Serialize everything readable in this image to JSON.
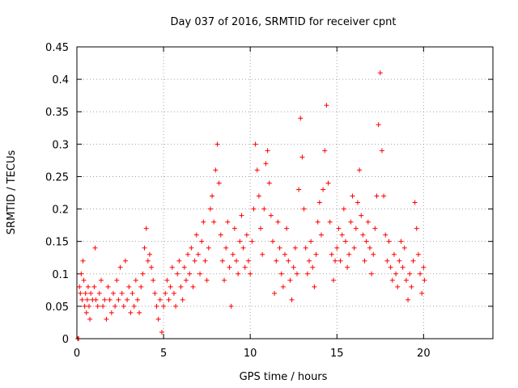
{
  "chart_data": {
    "type": "scatter",
    "title": "Day 037 of 2016, SRMTID for receiver cpnt",
    "xlabel": "GPS time / hours",
    "ylabel": "SRMTID / TECUs",
    "xlim": [
      0,
      24
    ],
    "ylim": [
      0,
      0.45
    ],
    "x_ticks": [
      0,
      5,
      10,
      15,
      20
    ],
    "x_tick_labels": [
      "0",
      "5",
      "10",
      "15",
      "20"
    ],
    "y_ticks": [
      0,
      0.05,
      0.1,
      0.15,
      0.2,
      0.25,
      0.3,
      0.35,
      0.4,
      0.45
    ],
    "y_tick_labels": [
      "0",
      "0.05",
      "0.1",
      "0.15",
      "0.2",
      "0.25",
      "0.3",
      "0.35",
      "0.4",
      "0.45"
    ],
    "grid": true,
    "marker": "plus",
    "color": "#ff0000",
    "series": [
      {
        "points": [
          [
            0.05,
            0.0
          ],
          [
            0.1,
            0.0
          ],
          [
            0.15,
            0.08
          ],
          [
            0.2,
            0.07
          ],
          [
            0.25,
            0.1
          ],
          [
            0.3,
            0.06
          ],
          [
            0.35,
            0.12
          ],
          [
            0.4,
            0.09
          ],
          [
            0.45,
            0.05
          ],
          [
            0.5,
            0.07
          ],
          [
            0.55,
            0.04
          ],
          [
            0.6,
            0.06
          ],
          [
            0.65,
            0.08
          ],
          [
            0.7,
            0.05
          ],
          [
            0.75,
            0.03
          ],
          [
            0.8,
            0.07
          ],
          [
            0.9,
            0.06
          ],
          [
            1.0,
            0.08
          ],
          [
            1.05,
            0.14
          ],
          [
            1.1,
            0.06
          ],
          [
            1.2,
            0.05
          ],
          [
            1.3,
            0.07
          ],
          [
            1.4,
            0.09
          ],
          [
            1.5,
            0.05
          ],
          [
            1.6,
            0.06
          ],
          [
            1.7,
            0.03
          ],
          [
            1.8,
            0.08
          ],
          [
            1.9,
            0.06
          ],
          [
            2.0,
            0.04
          ],
          [
            2.1,
            0.07
          ],
          [
            2.2,
            0.05
          ],
          [
            2.3,
            0.09
          ],
          [
            2.4,
            0.06
          ],
          [
            2.5,
            0.11
          ],
          [
            2.6,
            0.07
          ],
          [
            2.7,
            0.05
          ],
          [
            2.8,
            0.12
          ],
          [
            2.9,
            0.06
          ],
          [
            3.0,
            0.08
          ],
          [
            3.1,
            0.04
          ],
          [
            3.2,
            0.07
          ],
          [
            3.3,
            0.05
          ],
          [
            3.4,
            0.09
          ],
          [
            3.5,
            0.06
          ],
          [
            3.6,
            0.04
          ],
          [
            3.7,
            0.08
          ],
          [
            3.8,
            0.1
          ],
          [
            3.9,
            0.14
          ],
          [
            4.0,
            0.17
          ],
          [
            4.1,
            0.12
          ],
          [
            4.2,
            0.13
          ],
          [
            4.3,
            0.11
          ],
          [
            4.4,
            0.09
          ],
          [
            4.5,
            0.07
          ],
          [
            4.6,
            0.05
          ],
          [
            4.7,
            0.03
          ],
          [
            4.8,
            0.06
          ],
          [
            4.9,
            0.01
          ],
          [
            5.0,
            0.05
          ],
          [
            5.1,
            0.07
          ],
          [
            5.2,
            0.09
          ],
          [
            5.3,
            0.06
          ],
          [
            5.4,
            0.08
          ],
          [
            5.5,
            0.11
          ],
          [
            5.6,
            0.07
          ],
          [
            5.7,
            0.05
          ],
          [
            5.8,
            0.1
          ],
          [
            5.9,
            0.12
          ],
          [
            6.0,
            0.08
          ],
          [
            6.1,
            0.06
          ],
          [
            6.2,
            0.11
          ],
          [
            6.3,
            0.09
          ],
          [
            6.4,
            0.13
          ],
          [
            6.5,
            0.1
          ],
          [
            6.6,
            0.14
          ],
          [
            6.7,
            0.08
          ],
          [
            6.8,
            0.12
          ],
          [
            6.9,
            0.16
          ],
          [
            7.0,
            0.13
          ],
          [
            7.1,
            0.1
          ],
          [
            7.2,
            0.15
          ],
          [
            7.3,
            0.18
          ],
          [
            7.4,
            0.12
          ],
          [
            7.5,
            0.09
          ],
          [
            7.6,
            0.14
          ],
          [
            7.7,
            0.2
          ],
          [
            7.8,
            0.22
          ],
          [
            7.9,
            0.18
          ],
          [
            8.0,
            0.26
          ],
          [
            8.1,
            0.3
          ],
          [
            8.2,
            0.24
          ],
          [
            8.3,
            0.16
          ],
          [
            8.4,
            0.12
          ],
          [
            8.5,
            0.09
          ],
          [
            8.6,
            0.14
          ],
          [
            8.7,
            0.18
          ],
          [
            8.8,
            0.11
          ],
          [
            8.9,
            0.05
          ],
          [
            9.0,
            0.13
          ],
          [
            9.1,
            0.17
          ],
          [
            9.2,
            0.12
          ],
          [
            9.3,
            0.1
          ],
          [
            9.4,
            0.15
          ],
          [
            9.5,
            0.19
          ],
          [
            9.6,
            0.14
          ],
          [
            9.7,
            0.11
          ],
          [
            9.8,
            0.16
          ],
          [
            9.9,
            0.12
          ],
          [
            10.0,
            0.1
          ],
          [
            10.1,
            0.15
          ],
          [
            10.2,
            0.2
          ],
          [
            10.3,
            0.3
          ],
          [
            10.4,
            0.26
          ],
          [
            10.5,
            0.22
          ],
          [
            10.6,
            0.17
          ],
          [
            10.7,
            0.13
          ],
          [
            10.8,
            0.2
          ],
          [
            10.9,
            0.27
          ],
          [
            11.0,
            0.29
          ],
          [
            11.1,
            0.24
          ],
          [
            11.2,
            0.19
          ],
          [
            11.3,
            0.15
          ],
          [
            11.4,
            0.07
          ],
          [
            11.5,
            0.12
          ],
          [
            11.6,
            0.18
          ],
          [
            11.7,
            0.14
          ],
          [
            11.8,
            0.1
          ],
          [
            11.9,
            0.08
          ],
          [
            12.0,
            0.13
          ],
          [
            12.1,
            0.17
          ],
          [
            12.2,
            0.12
          ],
          [
            12.3,
            0.09
          ],
          [
            12.4,
            0.06
          ],
          [
            12.5,
            0.11
          ],
          [
            12.6,
            0.14
          ],
          [
            12.7,
            0.1
          ],
          [
            12.8,
            0.23
          ],
          [
            12.9,
            0.34
          ],
          [
            13.0,
            0.28
          ],
          [
            13.1,
            0.2
          ],
          [
            13.2,
            0.14
          ],
          [
            13.3,
            0.1
          ],
          [
            13.4,
            0.12
          ],
          [
            13.5,
            0.15
          ],
          [
            13.6,
            0.11
          ],
          [
            13.7,
            0.08
          ],
          [
            13.8,
            0.13
          ],
          [
            13.9,
            0.18
          ],
          [
            14.0,
            0.21
          ],
          [
            14.1,
            0.16
          ],
          [
            14.2,
            0.23
          ],
          [
            14.3,
            0.29
          ],
          [
            14.4,
            0.36
          ],
          [
            14.5,
            0.24
          ],
          [
            14.6,
            0.18
          ],
          [
            14.7,
            0.13
          ],
          [
            14.8,
            0.09
          ],
          [
            14.9,
            0.12
          ],
          [
            15.0,
            0.14
          ],
          [
            15.1,
            0.17
          ],
          [
            15.2,
            0.12
          ],
          [
            15.3,
            0.16
          ],
          [
            15.4,
            0.2
          ],
          [
            15.5,
            0.15
          ],
          [
            15.6,
            0.11
          ],
          [
            15.7,
            0.13
          ],
          [
            15.8,
            0.18
          ],
          [
            15.9,
            0.22
          ],
          [
            16.0,
            0.14
          ],
          [
            16.1,
            0.17
          ],
          [
            16.2,
            0.21
          ],
          [
            16.3,
            0.26
          ],
          [
            16.4,
            0.19
          ],
          [
            16.5,
            0.16
          ],
          [
            16.6,
            0.12
          ],
          [
            16.7,
            0.15
          ],
          [
            16.8,
            0.18
          ],
          [
            16.9,
            0.14
          ],
          [
            17.0,
            0.1
          ],
          [
            17.1,
            0.13
          ],
          [
            17.2,
            0.17
          ],
          [
            17.3,
            0.22
          ],
          [
            17.4,
            0.33
          ],
          [
            17.5,
            0.41
          ],
          [
            17.6,
            0.29
          ],
          [
            17.7,
            0.22
          ],
          [
            17.8,
            0.16
          ],
          [
            17.9,
            0.12
          ],
          [
            18.0,
            0.15
          ],
          [
            18.1,
            0.11
          ],
          [
            18.2,
            0.09
          ],
          [
            18.3,
            0.13
          ],
          [
            18.4,
            0.1
          ],
          [
            18.5,
            0.08
          ],
          [
            18.6,
            0.12
          ],
          [
            18.7,
            0.15
          ],
          [
            18.8,
            0.11
          ],
          [
            18.9,
            0.14
          ],
          [
            19.0,
            0.09
          ],
          [
            19.1,
            0.06
          ],
          [
            19.2,
            0.1
          ],
          [
            19.3,
            0.08
          ],
          [
            19.4,
            0.12
          ],
          [
            19.5,
            0.21
          ],
          [
            19.6,
            0.17
          ],
          [
            19.7,
            0.13
          ],
          [
            19.8,
            0.1
          ],
          [
            19.9,
            0.07
          ],
          [
            20.0,
            0.11
          ],
          [
            20.05,
            0.09
          ]
        ]
      }
    ]
  }
}
